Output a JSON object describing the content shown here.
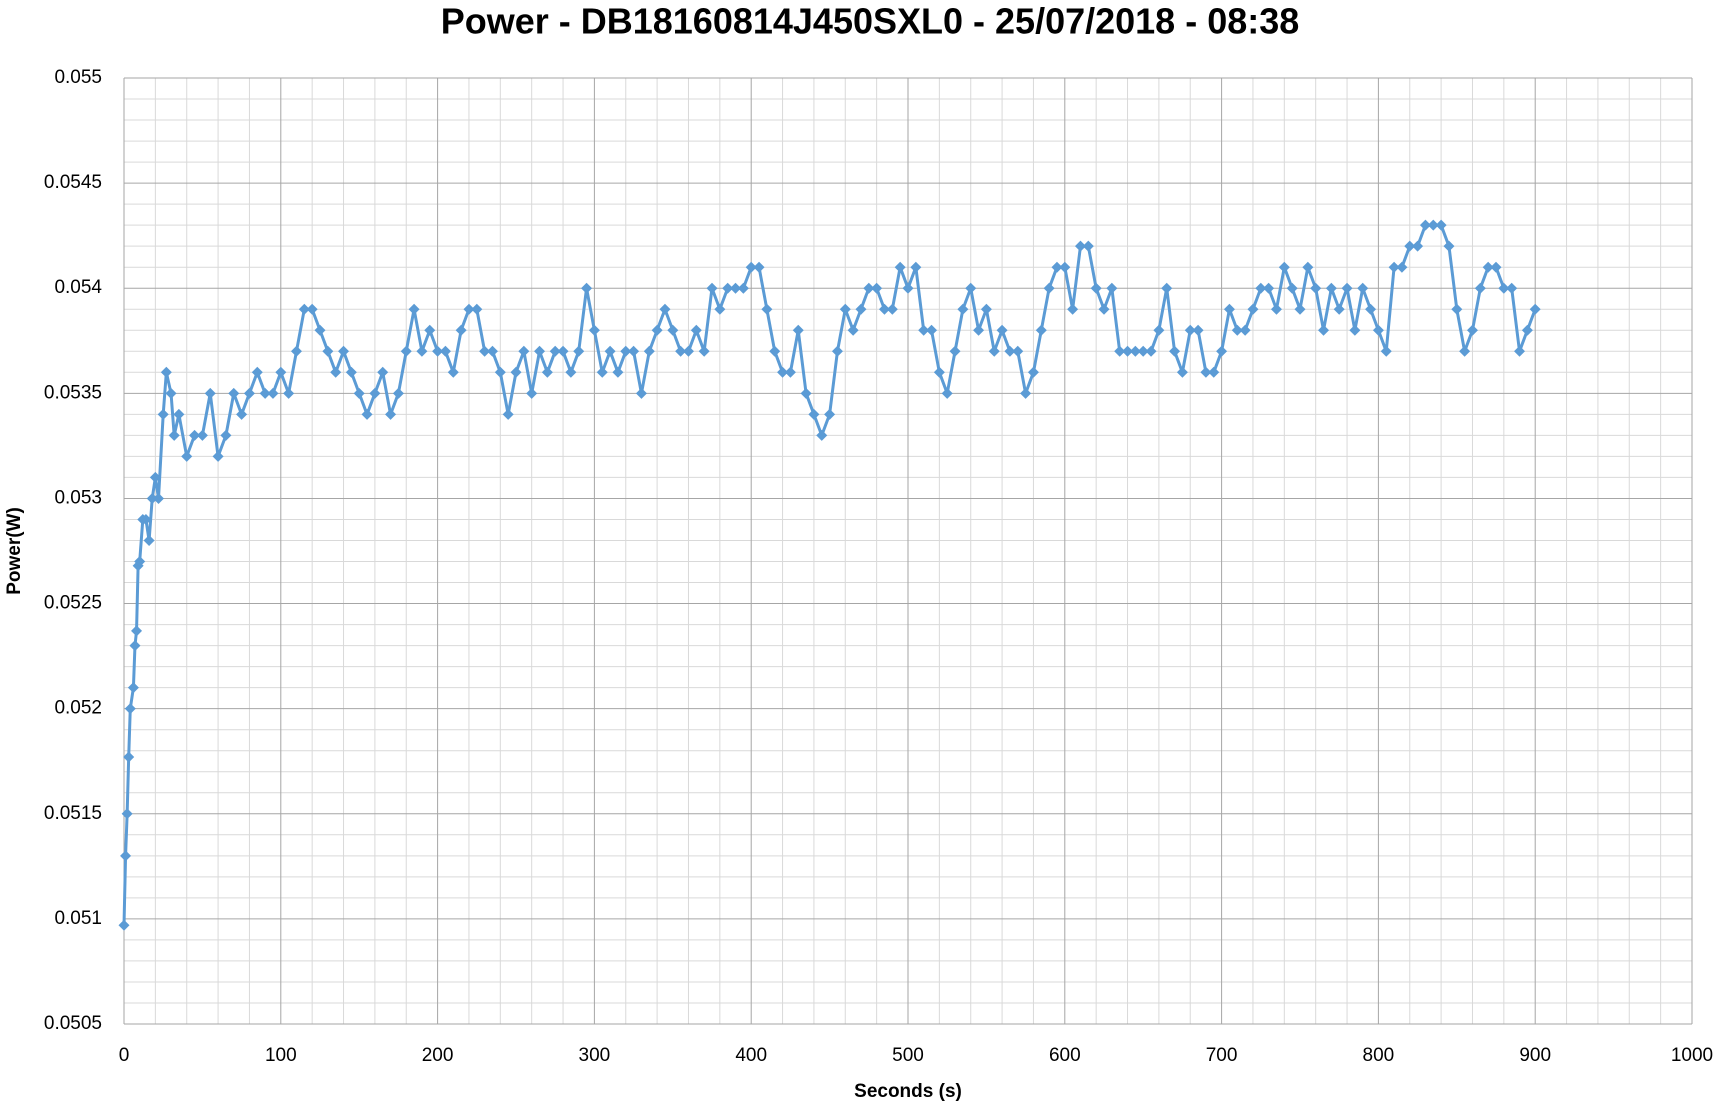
{
  "chart_data": {
    "type": "line",
    "title": "Power - DB18160814J450SXL0 - 25/07/2018 - 08:38",
    "x_label": "Seconds (s)",
    "y_label": "Power(W)",
    "color": "#5b9bd5",
    "marker": "diamond",
    "grid": true,
    "xlim": [
      0,
      1000
    ],
    "xticks": [
      0,
      100,
      200,
      300,
      400,
      500,
      600,
      700,
      800,
      900,
      1000
    ],
    "ylim": [
      0.0505,
      0.055
    ],
    "yticks": [
      0.0505,
      0.051,
      0.0515,
      0.052,
      0.0525,
      0.053,
      0.0535,
      0.054,
      0.0545,
      0.055
    ],
    "x": [
      0,
      1,
      2,
      3,
      4,
      6,
      7,
      8,
      9,
      10,
      12,
      14,
      16,
      18,
      20,
      22,
      25,
      27,
      30,
      32,
      35,
      40,
      45,
      50,
      55,
      60,
      65,
      70,
      75,
      80,
      85,
      90,
      95,
      100,
      105,
      110,
      115,
      120,
      125,
      130,
      135,
      140,
      145,
      150,
      155,
      160,
      165,
      170,
      175,
      180,
      185,
      190,
      195,
      200,
      205,
      210,
      215,
      220,
      225,
      230,
      235,
      240,
      245,
      250,
      255,
      260,
      265,
      270,
      275,
      280,
      285,
      290,
      295,
      300,
      305,
      310,
      315,
      320,
      325,
      330,
      335,
      340,
      345,
      350,
      355,
      360,
      365,
      370,
      375,
      380,
      385,
      390,
      395,
      400,
      405,
      410,
      415,
      420,
      425,
      430,
      435,
      440,
      445,
      450,
      455,
      460,
      465,
      470,
      475,
      480,
      485,
      490,
      495,
      500,
      505,
      510,
      515,
      520,
      525,
      530,
      535,
      540,
      545,
      550,
      555,
      560,
      565,
      570,
      575,
      580,
      585,
      590,
      595,
      600,
      605,
      610,
      615,
      620,
      625,
      630,
      635,
      640,
      645,
      650,
      655,
      660,
      665,
      670,
      675,
      680,
      685,
      690,
      695,
      700,
      705,
      710,
      715,
      720,
      725,
      730,
      735,
      740,
      745,
      750,
      755,
      760,
      765,
      770,
      775,
      780,
      785,
      790,
      795,
      800,
      805,
      810,
      815,
      820,
      825,
      830,
      835,
      840,
      845,
      850,
      855,
      860,
      865,
      870,
      875,
      880,
      885,
      890,
      895,
      900
    ],
    "values": [
      0.05097,
      0.0513,
      0.0515,
      0.05177,
      0.052,
      0.0521,
      0.0523,
      0.05237,
      0.05268,
      0.0527,
      0.0529,
      0.0529,
      0.0528,
      0.053,
      0.0531,
      0.053,
      0.0534,
      0.0536,
      0.0535,
      0.0533,
      0.0534,
      0.0532,
      0.0533,
      0.0533,
      0.0535,
      0.0532,
      0.0533,
      0.0535,
      0.0534,
      0.0535,
      0.0536,
      0.0535,
      0.0535,
      0.0536,
      0.0535,
      0.0537,
      0.0539,
      0.0539,
      0.0538,
      0.0537,
      0.0536,
      0.0537,
      0.0536,
      0.0535,
      0.0534,
      0.0535,
      0.0536,
      0.0534,
      0.0535,
      0.0537,
      0.0539,
      0.0537,
      0.0538,
      0.0537,
      0.0537,
      0.0536,
      0.0538,
      0.0539,
      0.0539,
      0.0537,
      0.0537,
      0.0536,
      0.0534,
      0.0536,
      0.0537,
      0.0535,
      0.0537,
      0.0536,
      0.0537,
      0.0537,
      0.0536,
      0.0537,
      0.054,
      0.0538,
      0.0536,
      0.0537,
      0.0536,
      0.0537,
      0.0537,
      0.0535,
      0.0537,
      0.0538,
      0.0539,
      0.0538,
      0.0537,
      0.0537,
      0.0538,
      0.0537,
      0.054,
      0.0539,
      0.054,
      0.054,
      0.054,
      0.0541,
      0.0541,
      0.0539,
      0.0537,
      0.0536,
      0.0536,
      0.0538,
      0.0535,
      0.0534,
      0.0533,
      0.0534,
      0.0537,
      0.0539,
      0.0538,
      0.0539,
      0.054,
      0.054,
      0.0539,
      0.0539,
      0.0541,
      0.054,
      0.0541,
      0.0538,
      0.0538,
      0.0536,
      0.0535,
      0.0537,
      0.0539,
      0.054,
      0.0538,
      0.0539,
      0.0537,
      0.0538,
      0.0537,
      0.0537,
      0.0535,
      0.0536,
      0.0538,
      0.054,
      0.0541,
      0.0541,
      0.0539,
      0.0542,
      0.0542,
      0.054,
      0.0539,
      0.054,
      0.0537,
      0.0537,
      0.0537,
      0.0537,
      0.0537,
      0.0538,
      0.054,
      0.0537,
      0.0536,
      0.0538,
      0.0538,
      0.0536,
      0.0536,
      0.0537,
      0.0539,
      0.0538,
      0.0538,
      0.0539,
      0.054,
      0.054,
      0.0539,
      0.0541,
      0.054,
      0.0539,
      0.0541,
      0.054,
      0.0538,
      0.054,
      0.0539,
      0.054,
      0.0538,
      0.054,
      0.0539,
      0.0538,
      0.0537,
      0.0541,
      0.0541,
      0.0542,
      0.0542,
      0.0543,
      0.0543,
      0.0543,
      0.0542,
      0.0539,
      0.0537,
      0.0538,
      0.054,
      0.0541,
      0.0541,
      0.054,
      0.054,
      0.0537,
      0.0538,
      0.0539
    ]
  }
}
